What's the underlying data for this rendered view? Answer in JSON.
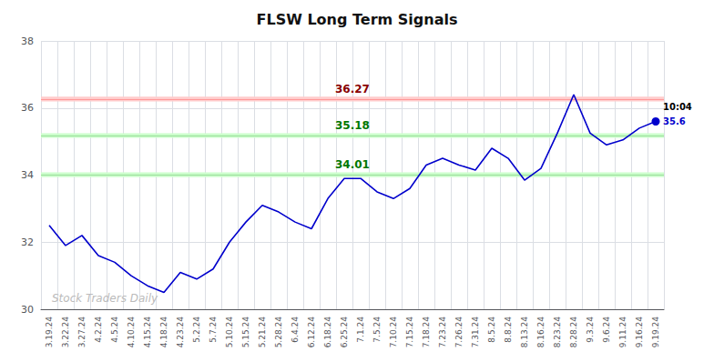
{
  "chart_data": {
    "type": "line",
    "title": "FLSW Long Term Signals",
    "categories": [
      "3.19.24",
      "3.22.24",
      "3.27.24",
      "4.2.24",
      "4.5.24",
      "4.10.24",
      "4.15.24",
      "4.18.24",
      "4.23.24",
      "5.2.24",
      "5.7.24",
      "5.10.24",
      "5.15.24",
      "5.21.24",
      "5.28.24",
      "6.4.24",
      "6.12.24",
      "6.18.24",
      "6.25.24",
      "7.1.24",
      "7.5.24",
      "7.10.24",
      "7.15.24",
      "7.18.24",
      "7.23.24",
      "7.26.24",
      "7.31.24",
      "8.5.24",
      "8.8.24",
      "8.13.24",
      "8.16.24",
      "8.23.24",
      "8.28.24",
      "9.3.24",
      "9.6.24",
      "9.11.24",
      "9.16.24",
      "9.19.24"
    ],
    "values": [
      32.5,
      31.9,
      32.2,
      31.6,
      31.4,
      31.0,
      30.7,
      30.5,
      31.1,
      30.9,
      31.2,
      32.0,
      32.6,
      33.1,
      32.9,
      32.6,
      32.4,
      33.3,
      33.9,
      33.9,
      33.5,
      33.3,
      33.6,
      34.3,
      34.5,
      34.3,
      34.15,
      34.8,
      34.5,
      33.85,
      34.2,
      35.25,
      36.4,
      35.25,
      34.9,
      35.05,
      35.4,
      35.6
    ],
    "color": "#0000cc",
    "ylim": [
      30,
      38
    ],
    "yticks": [
      30,
      32,
      34,
      36,
      38
    ],
    "grid": true,
    "hlines": [
      {
        "value": 36.27,
        "label": "36.27",
        "color": "#ff9999",
        "label_color": "#880000",
        "fill": "#ffcccc",
        "band": [
          36.2,
          36.34
        ]
      },
      {
        "value": 35.18,
        "label": "35.18",
        "color": "#99dd99",
        "label_color": "#007700",
        "fill": "#ccffcc",
        "band": [
          35.11,
          35.25
        ]
      },
      {
        "value": 34.01,
        "label": "34.01",
        "color": "#99dd99",
        "label_color": "#007700",
        "fill": "#ccffcc",
        "band": [
          33.94,
          34.08
        ]
      }
    ],
    "annotations": [
      {
        "text": "10:04",
        "color": "#000000"
      },
      {
        "text": "35.6",
        "color": "#0000cc"
      }
    ],
    "watermark": {
      "text": "Stock Traders Daily",
      "color": "#bbbbbb"
    }
  }
}
